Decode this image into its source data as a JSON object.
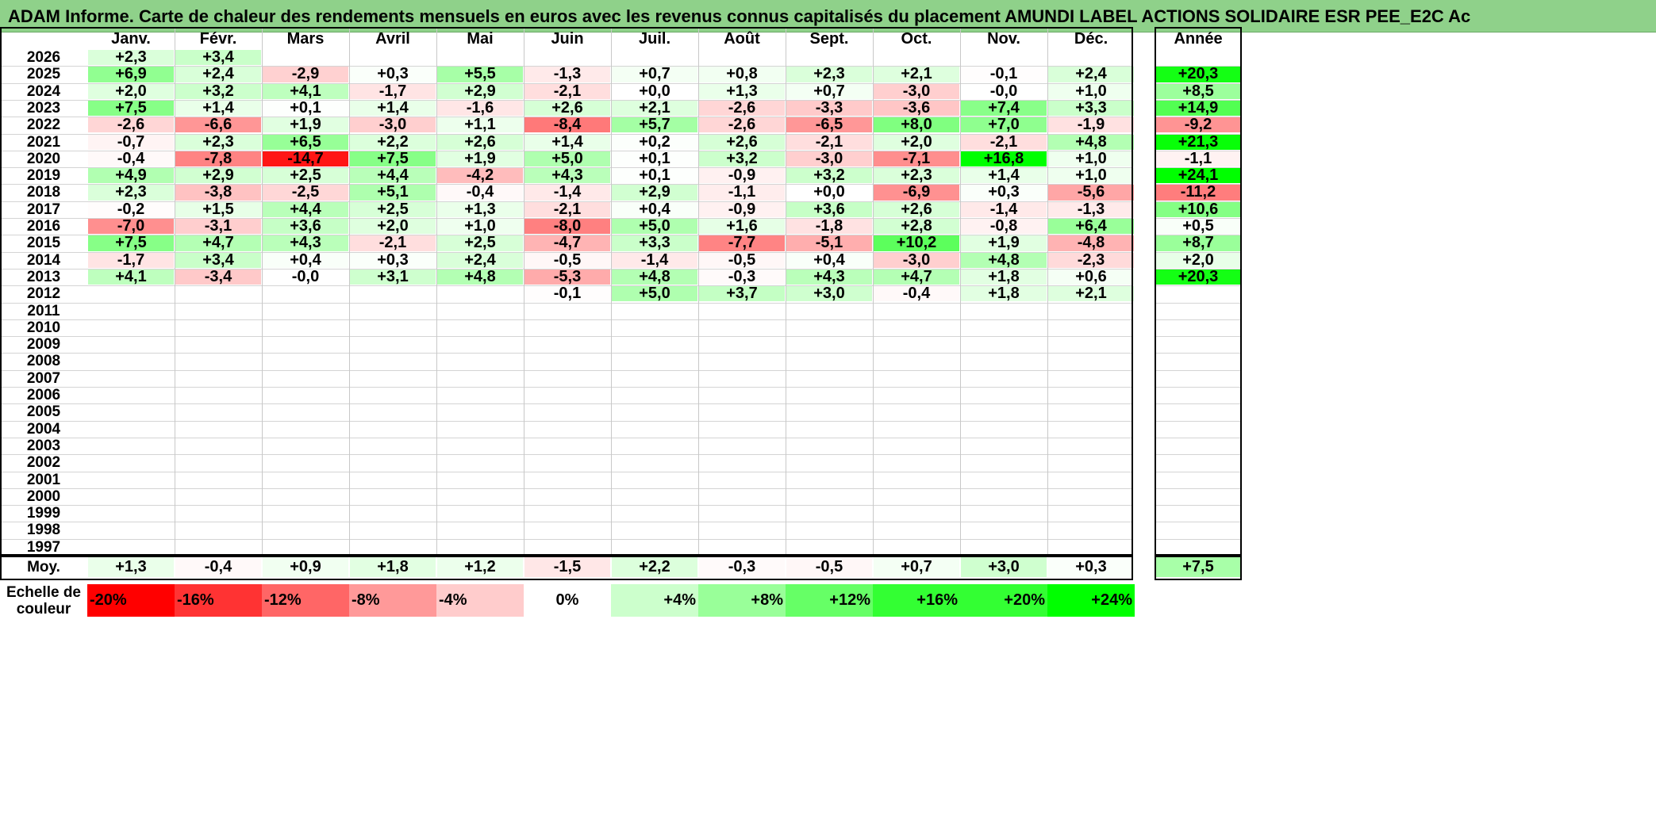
{
  "title": "ADAM Informe. Carte de chaleur des rendements mensuels en euros avec les revenus connus capitalisés du placement AMUNDI LABEL ACTIONS SOLIDAIRE ESR PEE_E2C Ac",
  "chart_data": {
    "type": "heatmap",
    "months": [
      "Janv.",
      "Févr.",
      "Mars",
      "Avril",
      "Mai",
      "Juin",
      "Juil.",
      "Août",
      "Sept.",
      "Oct.",
      "Nov.",
      "Déc."
    ],
    "year_header": "Année",
    "average_label": "Moy.",
    "rows": [
      {
        "year": "2026",
        "values": [
          "+2,3",
          "+3,4",
          "",
          "",
          "",
          "",
          "",
          "",
          "",
          "",
          "",
          ""
        ],
        "annual": ""
      },
      {
        "year": "2025",
        "values": [
          "+6,9",
          "+2,4",
          "-2,9",
          "+0,3",
          "+5,5",
          "-1,3",
          "+0,7",
          "+0,8",
          "+2,3",
          "+2,1",
          "-0,1",
          "+2,4"
        ],
        "annual": "+20,3"
      },
      {
        "year": "2024",
        "values": [
          "+2,0",
          "+3,2",
          "+4,1",
          "-1,7",
          "+2,9",
          "-2,1",
          "+0,0",
          "+1,3",
          "+0,7",
          "-3,0",
          "-0,0",
          "+1,0"
        ],
        "annual": "+8,5"
      },
      {
        "year": "2023",
        "values": [
          "+7,5",
          "+1,4",
          "+0,1",
          "+1,4",
          "-1,6",
          "+2,6",
          "+2,1",
          "-2,6",
          "-3,3",
          "-3,6",
          "+7,4",
          "+3,3"
        ],
        "annual": "+14,9"
      },
      {
        "year": "2022",
        "values": [
          "-2,6",
          "-6,6",
          "+1,9",
          "-3,0",
          "+1,1",
          "-8,4",
          "+5,7",
          "-2,6",
          "-6,5",
          "+8,0",
          "+7,0",
          "-1,9"
        ],
        "annual": "-9,2"
      },
      {
        "year": "2021",
        "values": [
          "-0,7",
          "+2,3",
          "+6,5",
          "+2,2",
          "+2,6",
          "+1,4",
          "+0,2",
          "+2,6",
          "-2,1",
          "+2,0",
          "-2,1",
          "+4,8"
        ],
        "annual": "+21,3"
      },
      {
        "year": "2020",
        "values": [
          "-0,4",
          "-7,8",
          "-14,7",
          "+7,5",
          "+1,9",
          "+5,0",
          "+0,1",
          "+3,2",
          "-3,0",
          "-7,1",
          "+16,8",
          "+1,0"
        ],
        "annual": "-1,1"
      },
      {
        "year": "2019",
        "values": [
          "+4,9",
          "+2,9",
          "+2,5",
          "+4,4",
          "-4,2",
          "+4,3",
          "+0,1",
          "-0,9",
          "+3,2",
          "+2,3",
          "+1,4",
          "+1,0"
        ],
        "annual": "+24,1"
      },
      {
        "year": "2018",
        "values": [
          "+2,3",
          "-3,8",
          "-2,5",
          "+5,1",
          "-0,4",
          "-1,4",
          "+2,9",
          "-1,1",
          "+0,0",
          "-6,9",
          "+0,3",
          "-5,6"
        ],
        "annual": "-11,2"
      },
      {
        "year": "2017",
        "values": [
          "-0,2",
          "+1,5",
          "+4,4",
          "+2,5",
          "+1,3",
          "-2,1",
          "+0,4",
          "-0,9",
          "+3,6",
          "+2,6",
          "-1,4",
          "-1,3"
        ],
        "annual": "+10,6"
      },
      {
        "year": "2016",
        "values": [
          "-7,0",
          "-3,1",
          "+3,6",
          "+2,0",
          "+1,0",
          "-8,0",
          "+5,0",
          "+1,6",
          "-1,8",
          "+2,8",
          "-0,8",
          "+6,4"
        ],
        "annual": "+0,5"
      },
      {
        "year": "2015",
        "values": [
          "+7,5",
          "+4,7",
          "+4,3",
          "-2,1",
          "+2,5",
          "-4,7",
          "+3,3",
          "-7,7",
          "-5,1",
          "+10,2",
          "+1,9",
          "-4,8"
        ],
        "annual": "+8,7"
      },
      {
        "year": "2014",
        "values": [
          "-1,7",
          "+3,4",
          "+0,4",
          "+0,3",
          "+2,4",
          "-0,5",
          "-1,4",
          "-0,5",
          "+0,4",
          "-3,0",
          "+4,8",
          "-2,3"
        ],
        "annual": "+2,0"
      },
      {
        "year": "2013",
        "values": [
          "+4,1",
          "-3,4",
          "-0,0",
          "+3,1",
          "+4,8",
          "-5,3",
          "+4,8",
          "-0,3",
          "+4,3",
          "+4,7",
          "+1,8",
          "+0,6"
        ],
        "annual": "+20,3"
      },
      {
        "year": "2012",
        "values": [
          "",
          "",
          "",
          "",
          "",
          "-0,1",
          "+5,0",
          "+3,7",
          "+3,0",
          "-0,4",
          "+1,8",
          "+2,1"
        ],
        "annual": ""
      },
      {
        "year": "2011",
        "values": [
          "",
          "",
          "",
          "",
          "",
          "",
          "",
          "",
          "",
          "",
          "",
          ""
        ],
        "annual": ""
      },
      {
        "year": "2010",
        "values": [
          "",
          "",
          "",
          "",
          "",
          "",
          "",
          "",
          "",
          "",
          "",
          ""
        ],
        "annual": ""
      },
      {
        "year": "2009",
        "values": [
          "",
          "",
          "",
          "",
          "",
          "",
          "",
          "",
          "",
          "",
          "",
          ""
        ],
        "annual": ""
      },
      {
        "year": "2008",
        "values": [
          "",
          "",
          "",
          "",
          "",
          "",
          "",
          "",
          "",
          "",
          "",
          ""
        ],
        "annual": ""
      },
      {
        "year": "2007",
        "values": [
          "",
          "",
          "",
          "",
          "",
          "",
          "",
          "",
          "",
          "",
          "",
          ""
        ],
        "annual": ""
      },
      {
        "year": "2006",
        "values": [
          "",
          "",
          "",
          "",
          "",
          "",
          "",
          "",
          "",
          "",
          "",
          ""
        ],
        "annual": ""
      },
      {
        "year": "2005",
        "values": [
          "",
          "",
          "",
          "",
          "",
          "",
          "",
          "",
          "",
          "",
          "",
          ""
        ],
        "annual": ""
      },
      {
        "year": "2004",
        "values": [
          "",
          "",
          "",
          "",
          "",
          "",
          "",
          "",
          "",
          "",
          "",
          ""
        ],
        "annual": ""
      },
      {
        "year": "2003",
        "values": [
          "",
          "",
          "",
          "",
          "",
          "",
          "",
          "",
          "",
          "",
          "",
          ""
        ],
        "annual": ""
      },
      {
        "year": "2002",
        "values": [
          "",
          "",
          "",
          "",
          "",
          "",
          "",
          "",
          "",
          "",
          "",
          ""
        ],
        "annual": ""
      },
      {
        "year": "2001",
        "values": [
          "",
          "",
          "",
          "",
          "",
          "",
          "",
          "",
          "",
          "",
          "",
          ""
        ],
        "annual": ""
      },
      {
        "year": "2000",
        "values": [
          "",
          "",
          "",
          "",
          "",
          "",
          "",
          "",
          "",
          "",
          "",
          ""
        ],
        "annual": ""
      },
      {
        "year": "1999",
        "values": [
          "",
          "",
          "",
          "",
          "",
          "",
          "",
          "",
          "",
          "",
          "",
          ""
        ],
        "annual": ""
      },
      {
        "year": "1998",
        "values": [
          "",
          "",
          "",
          "",
          "",
          "",
          "",
          "",
          "",
          "",
          "",
          ""
        ],
        "annual": ""
      },
      {
        "year": "1997",
        "values": [
          "",
          "",
          "",
          "",
          "",
          "",
          "",
          "",
          "",
          "",
          "",
          ""
        ],
        "annual": ""
      }
    ],
    "averages": [
      "+1,3",
      "-0,4",
      "+0,9",
      "+1,8",
      "+1,2",
      "-1,5",
      "+2,2",
      "-0,3",
      "-0,5",
      "+0,7",
      "+3,0",
      "+0,3"
    ],
    "annual_average": "+7,5",
    "scale_label": [
      "Echelle de",
      "couleur"
    ],
    "scale_steps": [
      {
        "label": "-20%",
        "value": -20,
        "color": "#ff0000"
      },
      {
        "label": "-16%",
        "value": -16,
        "color": "#ff3333"
      },
      {
        "label": "-12%",
        "value": -12,
        "color": "#ff6666"
      },
      {
        "label": "-8%",
        "value": -8,
        "color": "#ff9999"
      },
      {
        "label": "-4%",
        "value": -4,
        "color": "#ffcccc"
      },
      {
        "label": "0%",
        "value": 0,
        "color": "#ffffff"
      },
      {
        "label": "+4%",
        "value": 4,
        "color": "#ccffcc"
      },
      {
        "label": "+8%",
        "value": 8,
        "color": "#99ff99"
      },
      {
        "label": "+12%",
        "value": 12,
        "color": "#66ff66"
      },
      {
        "label": "+16%",
        "value": 16,
        "color": "#33ff33"
      },
      {
        "label": "+20%",
        "value": 20,
        "color": "#33ff33"
      },
      {
        "label": "+24%",
        "value": 24,
        "color": "#00ff00"
      }
    ]
  }
}
